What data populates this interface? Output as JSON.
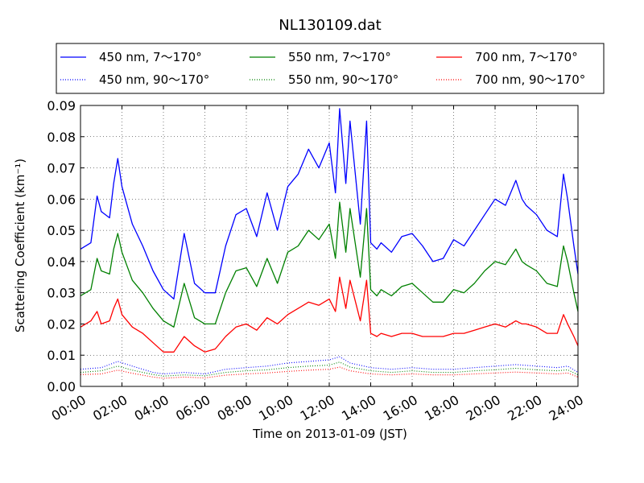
{
  "chart_data": {
    "type": "line",
    "title": "NL130109.dat",
    "xlabel": "Time on 2013-01-09 (JST)",
    "ylabel": "Scattering Coefficient (km⁻¹)",
    "xlim": [
      0,
      24
    ],
    "ylim": [
      0,
      0.09
    ],
    "x_ticks": [
      "00:00",
      "02:00",
      "04:00",
      "06:00",
      "08:00",
      "10:00",
      "12:00",
      "14:00",
      "16:00",
      "18:00",
      "20:00",
      "22:00",
      "24:00"
    ],
    "y_ticks": [
      "0.00",
      "0.01",
      "0.02",
      "0.03",
      "0.04",
      "0.05",
      "0.06",
      "0.07",
      "0.08",
      "0.09"
    ],
    "grid": true,
    "legend_position": "top",
    "series": [
      {
        "name": "450 nm, 7～170°",
        "color": "#0000ff",
        "style": "solid",
        "x": [
          0,
          0.5,
          0.8,
          1.0,
          1.4,
          1.6,
          1.8,
          2.0,
          2.5,
          3.0,
          3.5,
          4.0,
          4.5,
          5.0,
          5.5,
          6.0,
          6.5,
          7.0,
          7.5,
          8.0,
          8.5,
          9.0,
          9.5,
          10.0,
          10.5,
          11.0,
          11.5,
          12.0,
          12.3,
          12.5,
          12.8,
          13.0,
          13.5,
          13.8,
          14.0,
          14.3,
          14.5,
          15.0,
          15.5,
          16.0,
          16.5,
          17.0,
          17.5,
          18.0,
          18.5,
          19.0,
          19.5,
          20.0,
          20.5,
          21.0,
          21.3,
          21.5,
          22.0,
          22.5,
          23.0,
          23.3,
          23.5,
          23.8,
          24.0
        ],
        "y": [
          0.044,
          0.046,
          0.061,
          0.056,
          0.054,
          0.065,
          0.073,
          0.064,
          0.052,
          0.045,
          0.037,
          0.031,
          0.028,
          0.049,
          0.033,
          0.03,
          0.03,
          0.045,
          0.055,
          0.057,
          0.048,
          0.062,
          0.05,
          0.064,
          0.068,
          0.076,
          0.07,
          0.078,
          0.062,
          0.089,
          0.065,
          0.085,
          0.052,
          0.085,
          0.046,
          0.044,
          0.046,
          0.043,
          0.048,
          0.049,
          0.045,
          0.04,
          0.041,
          0.047,
          0.045,
          0.05,
          0.055,
          0.06,
          0.058,
          0.066,
          0.06,
          0.058,
          0.055,
          0.05,
          0.048,
          0.068,
          0.06,
          0.045,
          0.036
        ]
      },
      {
        "name": "550 nm, 7～170°",
        "color": "#008000",
        "style": "solid",
        "x": [
          0,
          0.5,
          0.8,
          1.0,
          1.4,
          1.6,
          1.8,
          2.0,
          2.5,
          3.0,
          3.5,
          4.0,
          4.5,
          5.0,
          5.5,
          6.0,
          6.5,
          7.0,
          7.5,
          8.0,
          8.5,
          9.0,
          9.5,
          10.0,
          10.5,
          11.0,
          11.5,
          12.0,
          12.3,
          12.5,
          12.8,
          13.0,
          13.5,
          13.8,
          14.0,
          14.3,
          14.5,
          15.0,
          15.5,
          16.0,
          16.5,
          17.0,
          17.5,
          18.0,
          18.5,
          19.0,
          19.5,
          20.0,
          20.5,
          21.0,
          21.3,
          21.5,
          22.0,
          22.5,
          23.0,
          23.3,
          23.5,
          23.8,
          24.0
        ],
        "y": [
          0.029,
          0.031,
          0.041,
          0.037,
          0.036,
          0.044,
          0.049,
          0.043,
          0.034,
          0.03,
          0.025,
          0.021,
          0.019,
          0.033,
          0.022,
          0.02,
          0.02,
          0.03,
          0.037,
          0.038,
          0.032,
          0.041,
          0.033,
          0.043,
          0.045,
          0.05,
          0.047,
          0.052,
          0.041,
          0.059,
          0.043,
          0.057,
          0.035,
          0.057,
          0.031,
          0.029,
          0.031,
          0.029,
          0.032,
          0.033,
          0.03,
          0.027,
          0.027,
          0.031,
          0.03,
          0.033,
          0.037,
          0.04,
          0.039,
          0.044,
          0.04,
          0.039,
          0.037,
          0.033,
          0.032,
          0.045,
          0.04,
          0.03,
          0.024
        ]
      },
      {
        "name": "700 nm, 7～170°",
        "color": "#ff0000",
        "style": "solid",
        "x": [
          0,
          0.5,
          0.8,
          1.0,
          1.4,
          1.6,
          1.8,
          2.0,
          2.5,
          3.0,
          3.5,
          4.0,
          4.5,
          5.0,
          5.5,
          6.0,
          6.5,
          7.0,
          7.5,
          8.0,
          8.5,
          9.0,
          9.5,
          10.0,
          10.5,
          11.0,
          11.5,
          12.0,
          12.3,
          12.5,
          12.8,
          13.0,
          13.5,
          13.8,
          14.0,
          14.3,
          14.5,
          15.0,
          15.5,
          16.0,
          16.5,
          17.0,
          17.5,
          18.0,
          18.5,
          19.0,
          19.5,
          20.0,
          20.5,
          21.0,
          21.3,
          21.5,
          22.0,
          22.5,
          23.0,
          23.3,
          23.5,
          23.8,
          24.0
        ],
        "y": [
          0.019,
          0.021,
          0.024,
          0.02,
          0.021,
          0.025,
          0.028,
          0.023,
          0.019,
          0.017,
          0.014,
          0.011,
          0.011,
          0.016,
          0.013,
          0.011,
          0.012,
          0.016,
          0.019,
          0.02,
          0.018,
          0.022,
          0.02,
          0.023,
          0.025,
          0.027,
          0.026,
          0.028,
          0.024,
          0.035,
          0.025,
          0.034,
          0.021,
          0.034,
          0.017,
          0.016,
          0.017,
          0.016,
          0.017,
          0.017,
          0.016,
          0.016,
          0.016,
          0.017,
          0.017,
          0.018,
          0.019,
          0.02,
          0.019,
          0.021,
          0.02,
          0.02,
          0.019,
          0.017,
          0.017,
          0.023,
          0.02,
          0.016,
          0.013
        ]
      },
      {
        "name": "450 nm, 90～170°",
        "color": "#0000ff",
        "style": "dotted",
        "x": [
          0,
          1.0,
          1.8,
          2.5,
          3.5,
          4.0,
          5.0,
          6.0,
          7.0,
          8.0,
          9.0,
          10.0,
          11.0,
          12.0,
          12.5,
          13.0,
          14.0,
          15.0,
          16.0,
          17.0,
          18.0,
          19.0,
          20.0,
          21.0,
          22.0,
          23.0,
          23.5,
          24.0
        ],
        "y": [
          0.0055,
          0.006,
          0.008,
          0.0065,
          0.0045,
          0.004,
          0.0045,
          0.004,
          0.0055,
          0.006,
          0.0065,
          0.0075,
          0.008,
          0.0085,
          0.0095,
          0.0075,
          0.006,
          0.0055,
          0.006,
          0.0055,
          0.0055,
          0.006,
          0.0065,
          0.007,
          0.0065,
          0.006,
          0.0065,
          0.0045
        ]
      },
      {
        "name": "550 nm, 90～170°",
        "color": "#008000",
        "style": "dotted",
        "x": [
          0,
          1.0,
          1.8,
          2.5,
          3.5,
          4.0,
          5.0,
          6.0,
          7.0,
          8.0,
          9.0,
          10.0,
          11.0,
          12.0,
          12.5,
          13.0,
          14.0,
          15.0,
          16.0,
          17.0,
          18.0,
          19.0,
          20.0,
          21.0,
          22.0,
          23.0,
          23.5,
          24.0
        ],
        "y": [
          0.0045,
          0.005,
          0.0065,
          0.0052,
          0.0038,
          0.0033,
          0.0037,
          0.0034,
          0.0045,
          0.005,
          0.0053,
          0.006,
          0.0065,
          0.0068,
          0.0078,
          0.0062,
          0.005,
          0.0045,
          0.005,
          0.0045,
          0.0045,
          0.005,
          0.0053,
          0.0058,
          0.0053,
          0.005,
          0.0053,
          0.0037
        ]
      },
      {
        "name": "700 nm, 90～170°",
        "color": "#ff0000",
        "style": "dotted",
        "x": [
          0,
          1.0,
          1.8,
          2.5,
          3.5,
          4.0,
          5.0,
          6.0,
          7.0,
          8.0,
          9.0,
          10.0,
          11.0,
          12.0,
          12.5,
          13.0,
          14.0,
          15.0,
          16.0,
          17.0,
          18.0,
          19.0,
          20.0,
          21.0,
          22.0,
          23.0,
          23.5,
          24.0
        ],
        "y": [
          0.0038,
          0.004,
          0.0052,
          0.0042,
          0.003,
          0.0026,
          0.003,
          0.0027,
          0.0036,
          0.004,
          0.0043,
          0.0048,
          0.0052,
          0.0055,
          0.0062,
          0.005,
          0.004,
          0.0037,
          0.004,
          0.0037,
          0.0037,
          0.004,
          0.0043,
          0.0046,
          0.0043,
          0.004,
          0.0043,
          0.003
        ]
      }
    ]
  }
}
